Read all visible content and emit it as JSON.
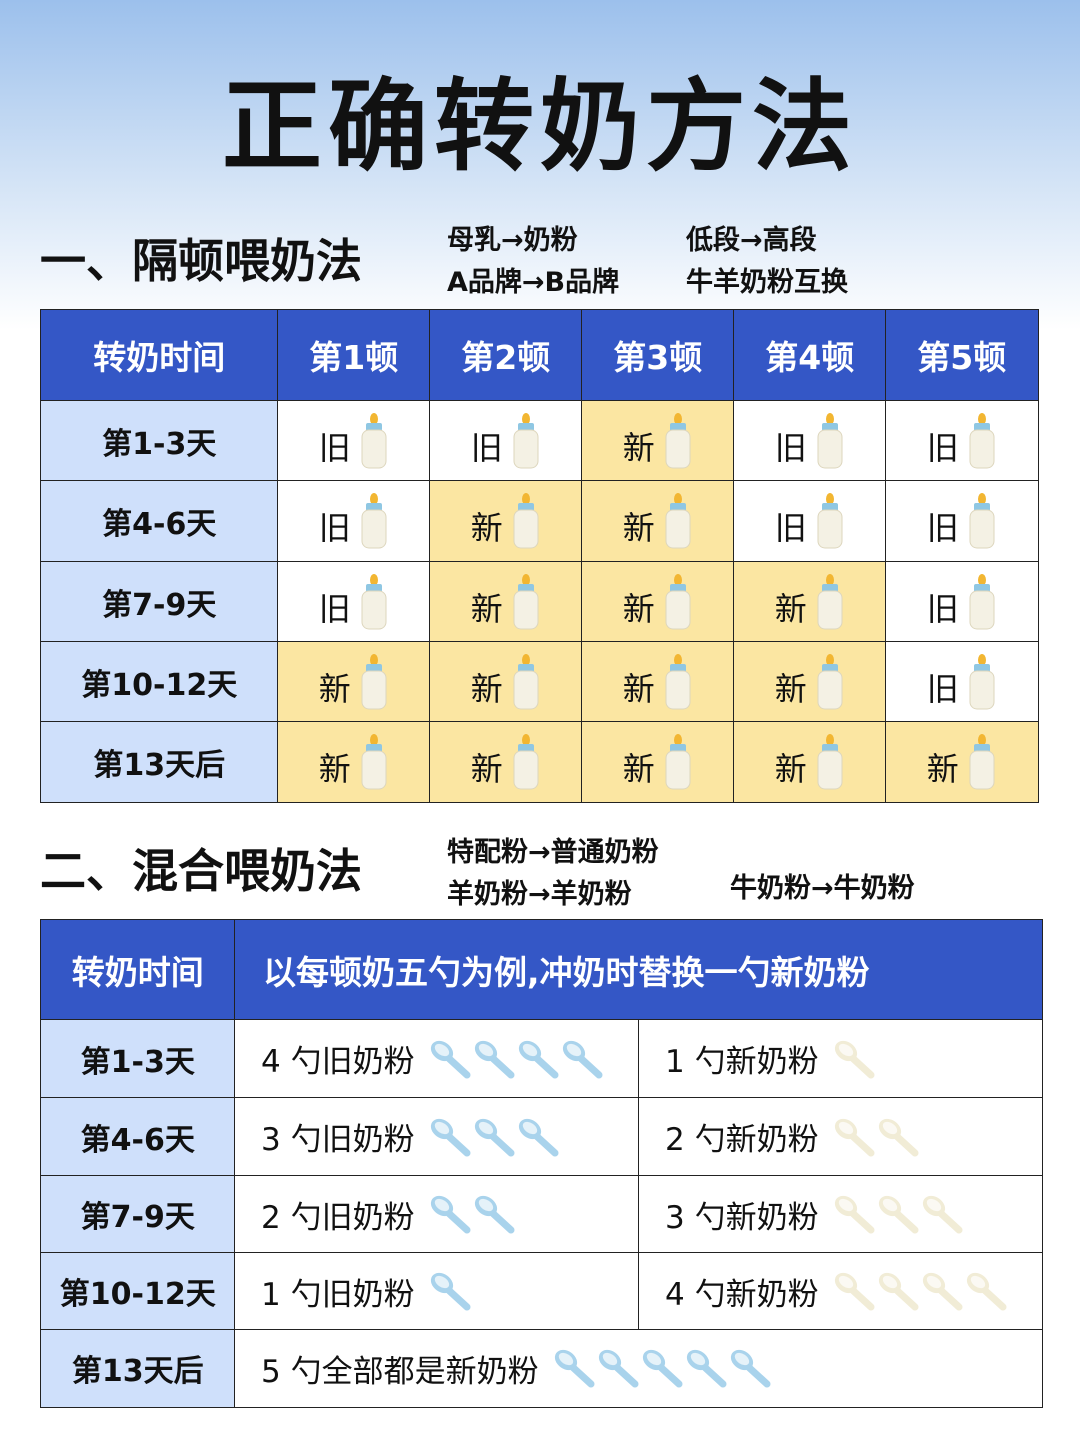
{
  "title": "正确转奶方法",
  "section1": {
    "heading": "一、隔顿喂奶法",
    "notes": [
      "母乳→奶粉",
      "低段→高段",
      "A品牌→B品牌",
      "牛羊奶粉互换"
    ],
    "table": {
      "header": [
        "转奶时间",
        "第1顿",
        "第2顿",
        "第3顿",
        "第4顿",
        "第5顿"
      ],
      "rows": [
        [
          "第1-3天",
          {
            "text": "旧",
            "fill": "#ffffff"
          },
          {
            "text": "旧",
            "fill": "#ffffff"
          },
          {
            "text": "新",
            "fill": "#fbe6a2"
          },
          {
            "text": "旧",
            "fill": "#ffffff"
          },
          {
            "text": "旧",
            "fill": "#ffffff"
          }
        ],
        [
          "第4-6天",
          {
            "text": "旧",
            "fill": "#ffffff"
          },
          {
            "text": "新",
            "fill": "#fbe6a2"
          },
          {
            "text": "新",
            "fill": "#fbe6a2"
          },
          {
            "text": "旧",
            "fill": "#ffffff"
          },
          {
            "text": "旧",
            "fill": "#ffffff"
          }
        ],
        [
          "第7-9天",
          {
            "text": "旧",
            "fill": "#ffffff"
          },
          {
            "text": "新",
            "fill": "#fbe6a2"
          },
          {
            "text": "新",
            "fill": "#fbe6a2"
          },
          {
            "text": "新",
            "fill": "#fbe6a2"
          },
          {
            "text": "旧",
            "fill": "#ffffff"
          }
        ],
        [
          "第10-12天",
          {
            "text": "新",
            "fill": "#fbe6a2"
          },
          {
            "text": "新",
            "fill": "#fbe6a2"
          },
          {
            "text": "新",
            "fill": "#fbe6a2"
          },
          {
            "text": "新",
            "fill": "#fbe6a2"
          },
          {
            "text": "旧",
            "fill": "#ffffff"
          }
        ],
        [
          "第13天后",
          {
            "text": "新",
            "fill": "#fbe6a2"
          },
          {
            "text": "新",
            "fill": "#fbe6a2"
          },
          {
            "text": "新",
            "fill": "#fbe6a2"
          },
          {
            "text": "新",
            "fill": "#fbe6a2"
          },
          {
            "text": "新",
            "fill": "#fbe6a2"
          }
        ]
      ]
    }
  },
  "section2": {
    "heading": "二、混合喂奶法",
    "notes": [
      "特配粉→普通奶粉",
      "羊奶粉→羊奶粉",
      "牛奶粉→牛奶粉"
    ],
    "table": {
      "header": [
        "转奶时间",
        "以每顿奶五勺为例,冲奶时替换一勺新奶粉"
      ],
      "rows": [
        [
          "第1-3天",
          "4 勺旧奶粉",
          "1 勺新奶粉"
        ],
        [
          "第4-6天",
          "3 勺旧奶粉",
          "2 勺新奶粉"
        ],
        [
          "第7-9天",
          "2 勺旧奶粉",
          "3 勺新奶粉"
        ],
        [
          "第10-12天",
          "1 勺旧奶粉",
          "4 勺新奶粉"
        ],
        [
          "第13天后",
          "5 勺全部都是新奶粉"
        ]
      ]
    }
  }
}
